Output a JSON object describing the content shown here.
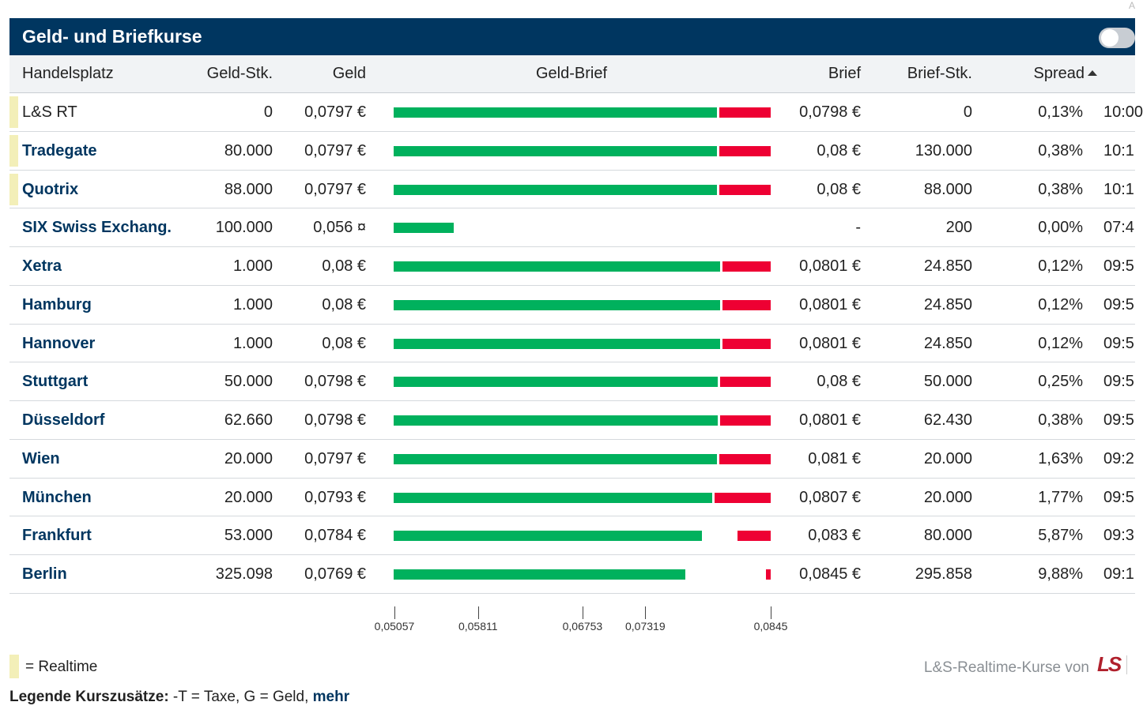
{
  "corner_text": "A",
  "header": {
    "title": "Geld- und Briefkurse"
  },
  "columns": {
    "venue": "Handelsplatz",
    "bid_size": "Geld-Stk.",
    "bid": "Geld",
    "bid_ask": "Geld-Brief",
    "ask": "Brief",
    "ask_size": "Brief-Stk.",
    "spread": "Spread"
  },
  "rows": [
    {
      "venue": "L&S RT",
      "realtime": true,
      "link": false,
      "bid_size": "0",
      "bid": "0,0797 €",
      "bid_value": 0.0797,
      "ask": "0,0798 €",
      "ask_value": 0.0798,
      "ask_size": "0",
      "spread": "0,13%",
      "time": "10:00"
    },
    {
      "venue": "Tradegate",
      "realtime": true,
      "link": true,
      "bid_size": "80.000",
      "bid": "0,0797 €",
      "bid_value": 0.0797,
      "ask": "0,08 €",
      "ask_value": 0.08,
      "ask_size": "130.000",
      "spread": "0,38%",
      "time": "10:1"
    },
    {
      "venue": "Quotrix",
      "realtime": true,
      "link": true,
      "bid_size": "88.000",
      "bid": "0,0797 €",
      "bid_value": 0.0797,
      "ask": "0,08 €",
      "ask_value": 0.08,
      "ask_size": "88.000",
      "spread": "0,38%",
      "time": "10:1"
    },
    {
      "venue": "SIX Swiss Exchang.",
      "realtime": false,
      "link": true,
      "bid_size": "100.000",
      "bid": "0,056 ¤",
      "bid_value": 0.056,
      "ask": "-",
      "ask_value": null,
      "ask_size": "200",
      "spread": "0,00%",
      "time": "07:4"
    },
    {
      "venue": "Xetra",
      "realtime": false,
      "link": true,
      "bid_size": "1.000",
      "bid": "0,08 €",
      "bid_value": 0.08,
      "ask": "0,0801 €",
      "ask_value": 0.0801,
      "ask_size": "24.850",
      "spread": "0,12%",
      "time": "09:5"
    },
    {
      "venue": "Hamburg",
      "realtime": false,
      "link": true,
      "bid_size": "1.000",
      "bid": "0,08 €",
      "bid_value": 0.08,
      "ask": "0,0801 €",
      "ask_value": 0.0801,
      "ask_size": "24.850",
      "spread": "0,12%",
      "time": "09:5"
    },
    {
      "venue": "Hannover",
      "realtime": false,
      "link": true,
      "bid_size": "1.000",
      "bid": "0,08 €",
      "bid_value": 0.08,
      "ask": "0,0801 €",
      "ask_value": 0.0801,
      "ask_size": "24.850",
      "spread": "0,12%",
      "time": "09:5"
    },
    {
      "venue": "Stuttgart",
      "realtime": false,
      "link": true,
      "bid_size": "50.000",
      "bid": "0,0798 €",
      "bid_value": 0.0798,
      "ask": "0,08 €",
      "ask_value": 0.08,
      "ask_size": "50.000",
      "spread": "0,25%",
      "time": "09:5"
    },
    {
      "venue": "Düsseldorf",
      "realtime": false,
      "link": true,
      "bid_size": "62.660",
      "bid": "0,0798 €",
      "bid_value": 0.0798,
      "ask": "0,0801 €",
      "ask_value": 0.0801,
      "ask_size": "62.430",
      "spread": "0,38%",
      "time": "09:5"
    },
    {
      "venue": "Wien",
      "realtime": false,
      "link": true,
      "bid_size": "20.000",
      "bid": "0,0797 €",
      "bid_value": 0.0797,
      "ask": "0,081 €",
      "ask_value": 0.081,
      "ask_size": "20.000",
      "spread": "1,63%",
      "time": "09:2"
    },
    {
      "venue": "München",
      "realtime": false,
      "link": true,
      "bid_size": "20.000",
      "bid": "0,0793 €",
      "bid_value": 0.0793,
      "ask": "0,0807 €",
      "ask_value": 0.0807,
      "ask_size": "20.000",
      "spread": "1,77%",
      "time": "09:5"
    },
    {
      "venue": "Frankfurt",
      "realtime": false,
      "link": true,
      "bid_size": "53.000",
      "bid": "0,0784 €",
      "bid_value": 0.0784,
      "ask": "0,083 €",
      "ask_value": 0.083,
      "ask_size": "80.000",
      "spread": "5,87%",
      "time": "09:3"
    },
    {
      "venue": "Berlin",
      "realtime": false,
      "link": true,
      "bid_size": "325.098",
      "bid": "0,0769 €",
      "bid_value": 0.0769,
      "ask": "0,0845 €",
      "ask_value": 0.0845,
      "ask_size": "295.858",
      "spread": "9,88%",
      "time": "09:1"
    }
  ],
  "axis": {
    "min": 0.0505,
    "max": 0.0845,
    "ticks": [
      {
        "value": 0.05057,
        "label": "0,05057"
      },
      {
        "value": 0.05811,
        "label": "0,05811"
      },
      {
        "value": 0.06753,
        "label": "0,06753"
      },
      {
        "value": 0.07319,
        "label": "0,07319"
      },
      {
        "value": 0.0845,
        "label": "0,0845"
      }
    ]
  },
  "legend": {
    "realtime_label": "= Realtime",
    "footnote_bold": "Legende Kurszusätze:",
    "footnote_text": " -T = Taxe, G = Geld, ",
    "more_link": "mehr",
    "credit": "L&S-Realtime-Kurse von",
    "logo_text": "LS"
  },
  "colors": {
    "header_bg": "#003660",
    "bid_bar": "#00b15d",
    "ask_bar": "#ee0033",
    "realtime_marker": "#f3efb8"
  }
}
